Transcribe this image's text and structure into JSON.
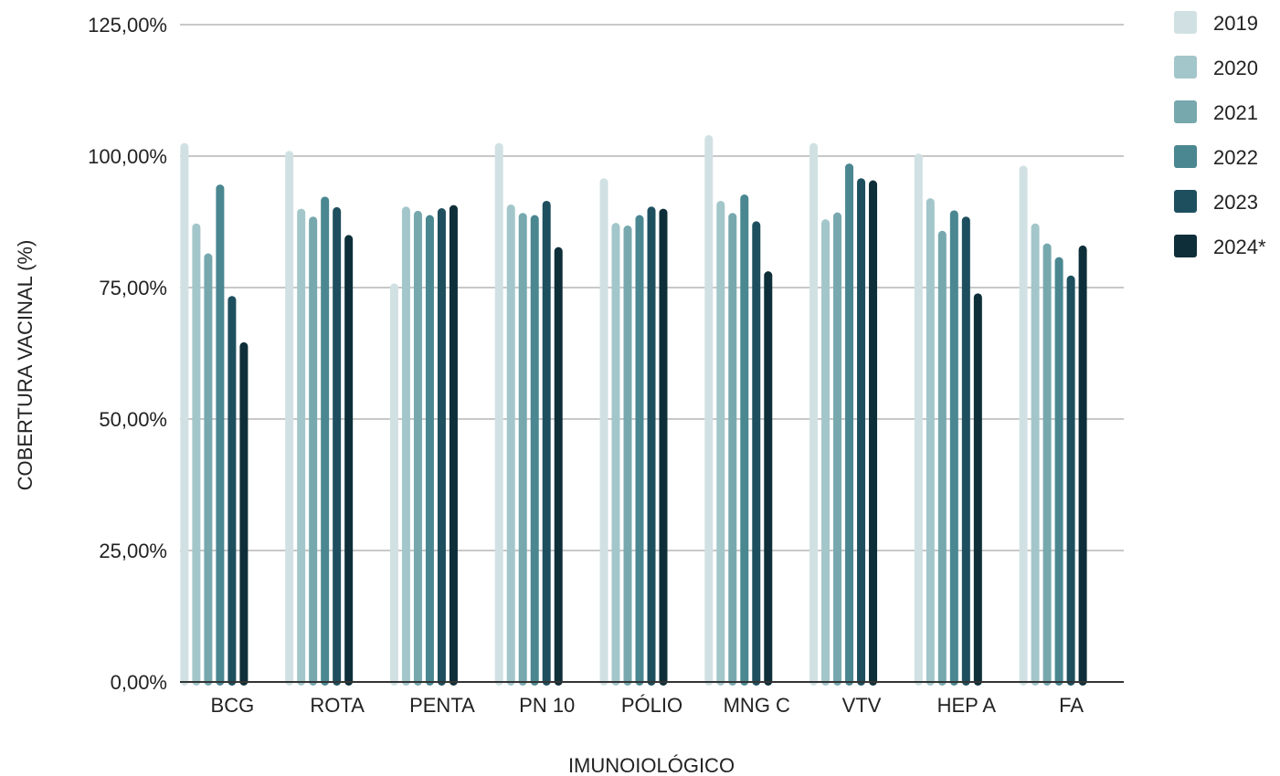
{
  "chart_data": {
    "type": "bar",
    "title": "",
    "xlabel": "IMUNOIOLÓGICO",
    "ylabel": "COBERTURA VACINAL (%)",
    "ylim": [
      0,
      125
    ],
    "yticks": [
      0,
      25,
      50,
      75,
      100,
      125
    ],
    "ytick_labels": [
      "0,00%",
      "25,00%",
      "50,00%",
      "75,00%",
      "100,00%",
      "125,00%"
    ],
    "grid": true,
    "legend_position": "right",
    "categories": [
      "BCG",
      "ROTA",
      "PENTA",
      "PN 10",
      "PÓLIO",
      "MNG C",
      "VTV",
      "HEP A",
      "FA"
    ],
    "series": [
      {
        "name": "2019",
        "color": "#d1e1e3",
        "values": [
          102.5,
          101.0,
          75.8,
          102.5,
          95.8,
          104.0,
          102.5,
          100.5,
          98.2
        ]
      },
      {
        "name": "2020",
        "color": "#a3c6ca",
        "values": [
          87.2,
          90.0,
          90.4,
          90.8,
          87.3,
          91.5,
          88.0,
          92.0,
          87.2
        ]
      },
      {
        "name": "2021",
        "color": "#76a8ae",
        "values": [
          81.5,
          88.5,
          89.6,
          89.2,
          86.8,
          89.2,
          89.3,
          85.8,
          83.4
        ]
      },
      {
        "name": "2022",
        "color": "#4a8791",
        "values": [
          94.6,
          92.3,
          88.8,
          88.8,
          88.8,
          92.7,
          98.6,
          89.7,
          80.8
        ]
      },
      {
        "name": "2023",
        "color": "#1e4f5e",
        "values": [
          73.4,
          90.3,
          90.1,
          91.5,
          90.4,
          87.6,
          95.8,
          88.5,
          77.3
        ]
      },
      {
        "name": "2024*",
        "color": "#0e2f39",
        "values": [
          64.6,
          85.0,
          90.7,
          82.7,
          90.0,
          78.1,
          95.4,
          73.9,
          83.0
        ]
      }
    ]
  }
}
